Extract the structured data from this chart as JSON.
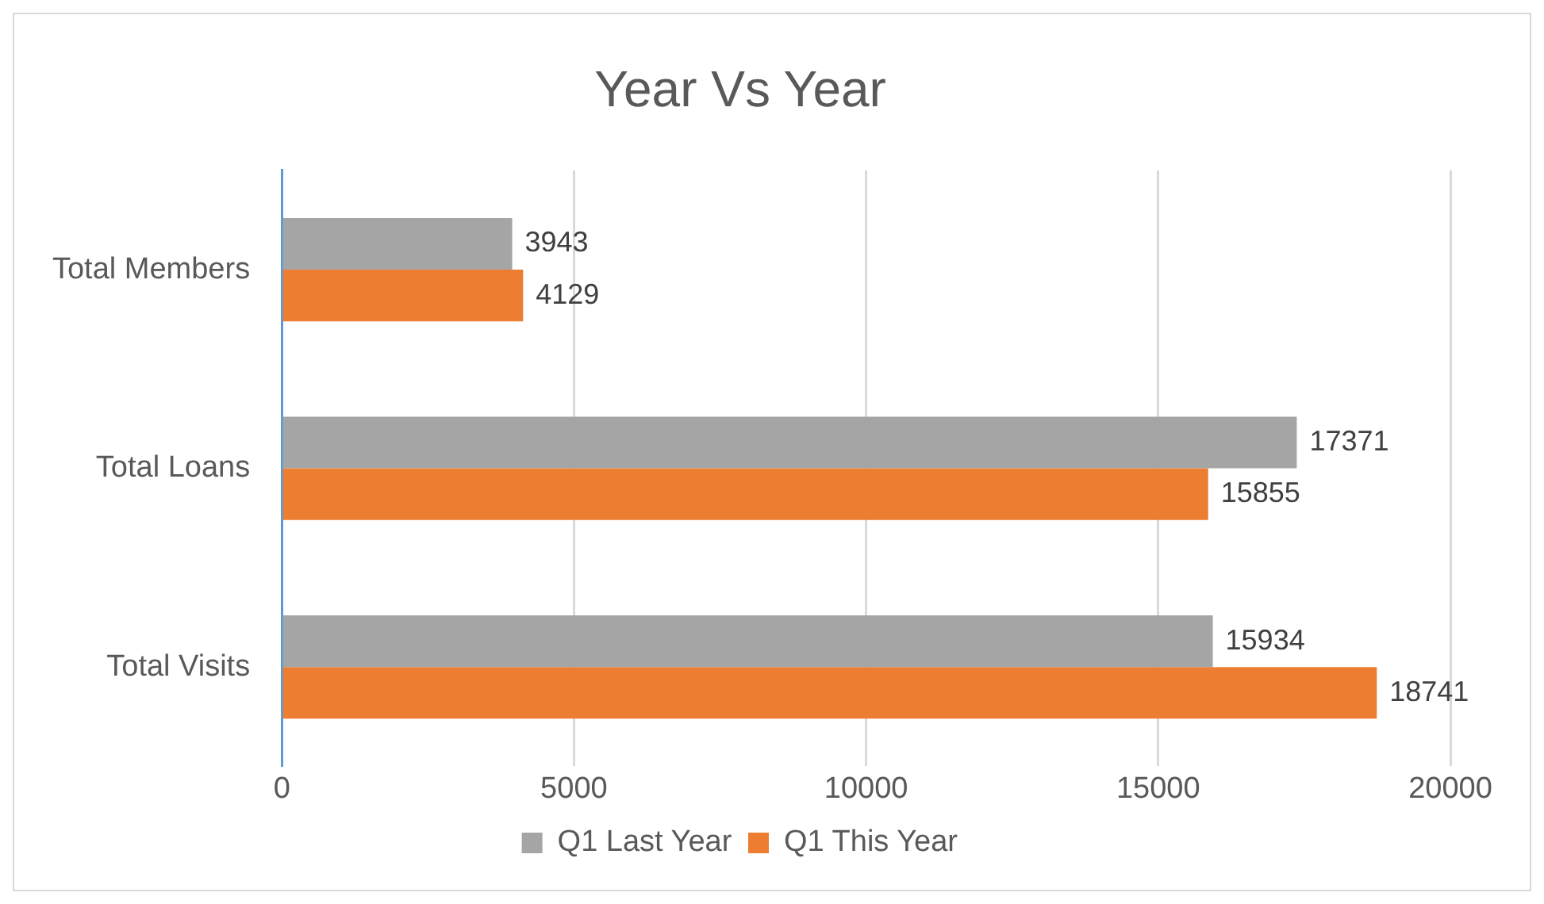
{
  "chart_data": {
    "type": "bar",
    "orientation": "horizontal",
    "title": "Year Vs Year",
    "categories": [
      "Total Members",
      "Total Loans",
      "Total Visits"
    ],
    "series": [
      {
        "name": "Q1 Last Year",
        "color": "#a5a5a5",
        "values": [
          3943,
          17371,
          15934
        ]
      },
      {
        "name": "Q1 This Year",
        "color": "#ed7d31",
        "values": [
          4129,
          15855,
          18741
        ]
      }
    ],
    "xlim": [
      0,
      20000
    ],
    "xticks": [
      0,
      5000,
      10000,
      15000,
      20000
    ],
    "grid": "x",
    "legend": "bottom",
    "data_labels": true
  }
}
